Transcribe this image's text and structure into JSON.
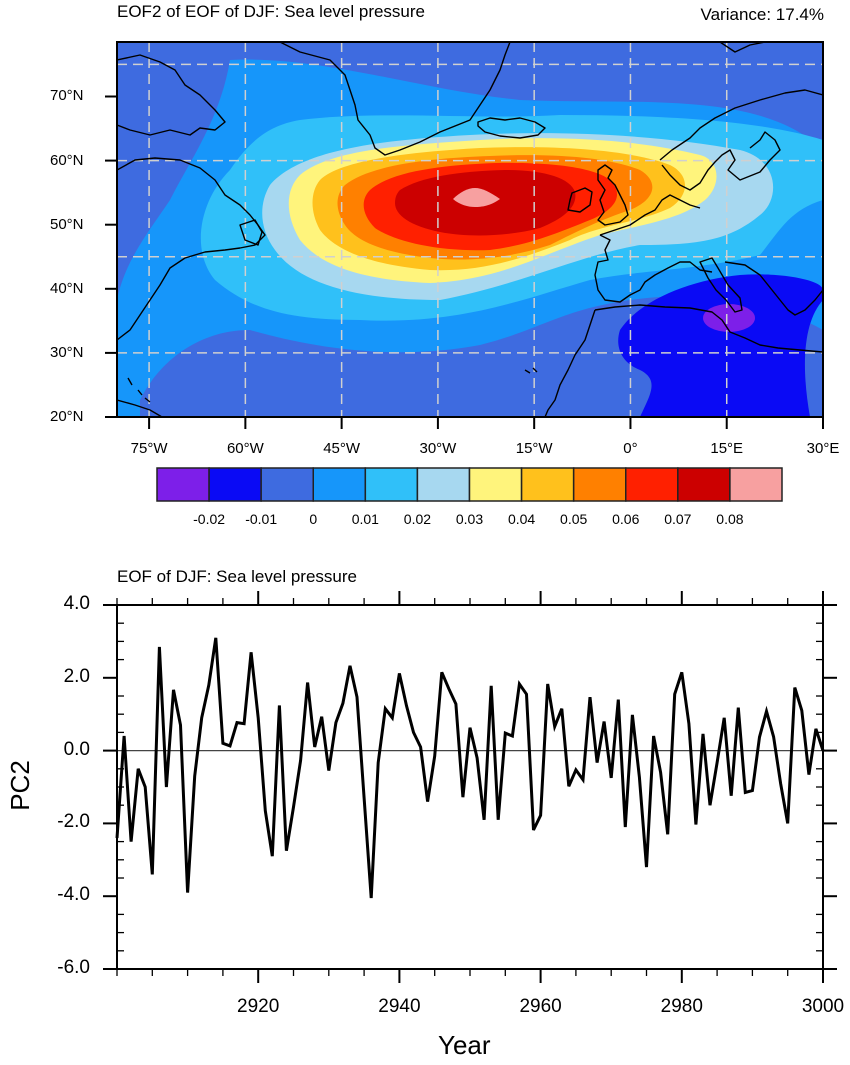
{
  "map_panel": {
    "title": "EOF2 of EOF of DJF: Sea level pressure",
    "variance_label": "Variance: 17.4%",
    "lon_ticks": [
      {
        "lon": -75,
        "label": "75°W"
      },
      {
        "lon": -60,
        "label": "60°W"
      },
      {
        "lon": -45,
        "label": "45°W"
      },
      {
        "lon": -30,
        "label": "30°W"
      },
      {
        "lon": -15,
        "label": "15°W"
      },
      {
        "lon": 0,
        "label": "0°"
      },
      {
        "lon": 15,
        "label": "15°E"
      },
      {
        "lon": 30,
        "label": "30°E"
      }
    ],
    "lat_ticks": [
      {
        "lat": 20,
        "label": "20°N"
      },
      {
        "lat": 30,
        "label": "30°N"
      },
      {
        "lat": 40,
        "label": "40°N"
      },
      {
        "lat": 50,
        "label": "50°N"
      },
      {
        "lat": 60,
        "label": "60°N"
      },
      {
        "lat": 70,
        "label": "70°N"
      }
    ],
    "lon_range": [
      -80,
      30
    ],
    "lat_range": [
      20,
      78.5
    ],
    "gridlines_lon": [
      -75,
      -60,
      -45,
      -30,
      -15,
      0,
      15,
      30
    ],
    "gridlines_lat": [
      30,
      45,
      60,
      75
    ],
    "field_max": {
      "lon": -24,
      "lat": 54,
      "value_band": "> 0.08"
    },
    "field_min": {
      "lon": 15,
      "lat": 35.5,
      "value_band": "< -0.02"
    },
    "colorbar": {
      "levels": [
        "-0.02",
        "-0.01",
        "0",
        "0.01",
        "0.02",
        "0.03",
        "0.04",
        "0.05",
        "0.06",
        "0.07",
        "0.08"
      ],
      "colors": [
        "#7D1FE9",
        "#0A0AF5",
        "#3E6BE0",
        "#1696FA",
        "#30C0F9",
        "#A7D8F0",
        "#FFF47C",
        "#FFC11C",
        "#FF8000",
        "#FF2000",
        "#CC0000",
        "#F7A0A0"
      ]
    }
  },
  "chart_data": {
    "type": "line",
    "title": "EOF of DJF: Sea level pressure",
    "xlabel": "Year",
    "ylabel": "PC2",
    "xlim": [
      2900,
      3000
    ],
    "ylim": [
      -6.0,
      4.0
    ],
    "xticks": [
      2920,
      2940,
      2960,
      2980,
      3000
    ],
    "xtick_labels": [
      "2920",
      "2940",
      "2960",
      "2980",
      "3000"
    ],
    "yticks": [
      4.0,
      2.0,
      0.0,
      -2.0,
      -4.0,
      -6.0
    ],
    "ytick_labels": [
      "4.0",
      "2.0",
      "0.0",
      "-2.0",
      "-4.0",
      "-6.0"
    ],
    "reference_line": 0.0,
    "grid": false,
    "series": [
      {
        "name": "PC2",
        "x_start": 2900,
        "x_step": 1,
        "values": [
          -2.4,
          0.4,
          -2.5,
          -0.5,
          -1.0,
          -3.4,
          2.85,
          -1.0,
          1.67,
          0.7,
          -3.9,
          -0.7,
          0.9,
          1.8,
          3.1,
          0.2,
          0.13,
          0.77,
          0.74,
          2.7,
          0.9,
          -1.65,
          -2.9,
          1.24,
          -2.75,
          -1.55,
          -0.27,
          1.87,
          0.1,
          0.93,
          -0.55,
          0.77,
          1.3,
          2.33,
          1.47,
          -1.3,
          -4.05,
          -0.33,
          1.15,
          0.9,
          2.12,
          1.23,
          0.5,
          0.1,
          -1.4,
          -0.15,
          2.15,
          1.7,
          1.28,
          -1.28,
          0.63,
          -0.2,
          -1.9,
          1.78,
          -1.9,
          0.48,
          0.4,
          1.83,
          1.55,
          -2.18,
          -1.78,
          1.83,
          0.66,
          1.15,
          -0.98,
          -0.53,
          -0.8,
          1.47,
          -0.33,
          0.8,
          -0.75,
          1.4,
          -2.1,
          0.98,
          -0.73,
          -3.2,
          0.4,
          -0.6,
          -2.3,
          1.55,
          2.15,
          0.74,
          -2.03,
          0.46,
          -1.5,
          -0.33,
          0.9,
          -1.24,
          1.18,
          -1.15,
          -1.1,
          0.37,
          1.08,
          0.38,
          -0.9,
          -2.0,
          1.73,
          1.1,
          -0.66,
          0.6,
          0.0
        ]
      }
    ]
  }
}
